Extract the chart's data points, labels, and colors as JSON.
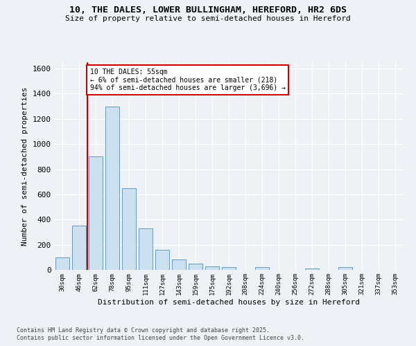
{
  "title_line1": "10, THE DALES, LOWER BULLINGHAM, HEREFORD, HR2 6DS",
  "title_line2": "Size of property relative to semi-detached houses in Hereford",
  "xlabel": "Distribution of semi-detached houses by size in Hereford",
  "ylabel": "Number of semi-detached properties",
  "categories": [
    "30sqm",
    "46sqm",
    "62sqm",
    "78sqm",
    "95sqm",
    "111sqm",
    "127sqm",
    "143sqm",
    "159sqm",
    "175sqm",
    "192sqm",
    "208sqm",
    "224sqm",
    "240sqm",
    "256sqm",
    "272sqm",
    "288sqm",
    "305sqm",
    "321sqm",
    "337sqm",
    "353sqm"
  ],
  "values": [
    100,
    350,
    900,
    1300,
    650,
    330,
    160,
    85,
    50,
    25,
    20,
    0,
    20,
    0,
    0,
    10,
    0,
    20,
    0,
    0,
    0
  ],
  "bar_color": "#cce0f0",
  "bar_edge_color": "#6699bb",
  "vline_x": 1.5,
  "vline_color": "#cc0000",
  "annotation_text": "10 THE DALES: 55sqm\n← 6% of semi-detached houses are smaller (218)\n94% of semi-detached houses are larger (3,696) →",
  "annotation_box_color": "#ffffff",
  "annotation_box_edge": "#cc0000",
  "ylim": [
    0,
    1650
  ],
  "yticks": [
    0,
    200,
    400,
    600,
    800,
    1000,
    1200,
    1400,
    1600
  ],
  "footer_line1": "Contains HM Land Registry data © Crown copyright and database right 2025.",
  "footer_line2": "Contains public sector information licensed under the Open Government Licence v3.0.",
  "bg_color": "#eef2f7",
  "plot_bg_color": "#eef2f7"
}
